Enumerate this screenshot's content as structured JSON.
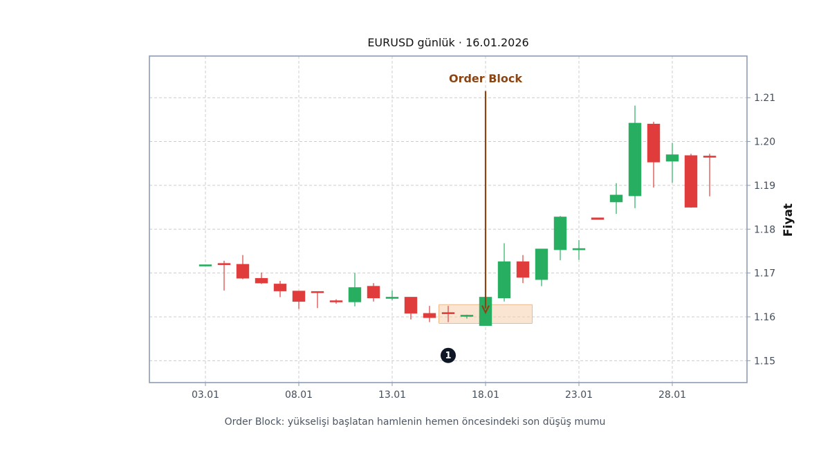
{
  "chart_data": {
    "type": "candlestick",
    "title": "EURUSD günlük · 16.01.2026",
    "ylabel": "Fiyat",
    "xlabel": "",
    "x_ticks": [
      "03.01",
      "08.01",
      "13.01",
      "18.01",
      "23.01",
      "28.01"
    ],
    "y_ticks": [
      "1.15",
      "1.16",
      "1.17",
      "1.18",
      "1.19",
      "1.20",
      "1.21"
    ],
    "xlim": [
      "2025-12-31",
      "2026-02-01"
    ],
    "ylim": [
      1.145,
      1.2195
    ],
    "grid": true,
    "colors": {
      "up": "#27ae60",
      "down": "#e03c3c",
      "annotation": "#8b4513",
      "zone": "#f5cba7",
      "frame": "#8a9bb5"
    },
    "candles": [
      {
        "date": "2026-01-03",
        "open": 1.1719,
        "high": 1.1719,
        "low": 1.1719,
        "close": 1.1719
      },
      {
        "date": "2026-01-04",
        "open": 1.1722,
        "high": 1.1728,
        "low": 1.166,
        "close": 1.1719
      },
      {
        "date": "2026-01-05",
        "open": 1.172,
        "high": 1.1741,
        "low": 1.1686,
        "close": 1.1688
      },
      {
        "date": "2026-01-06",
        "open": 1.1688,
        "high": 1.1701,
        "low": 1.1675,
        "close": 1.1677
      },
      {
        "date": "2026-01-07",
        "open": 1.1675,
        "high": 1.1682,
        "low": 1.1645,
        "close": 1.1659
      },
      {
        "date": "2026-01-08",
        "open": 1.1659,
        "high": 1.1659,
        "low": 1.1618,
        "close": 1.1635
      },
      {
        "date": "2026-01-09",
        "open": 1.1658,
        "high": 1.1658,
        "low": 1.162,
        "close": 1.1656
      },
      {
        "date": "2026-01-10",
        "open": 1.1637,
        "high": 1.164,
        "low": 1.163,
        "close": 1.1634
      },
      {
        "date": "2026-01-11",
        "open": 1.1634,
        "high": 1.17,
        "low": 1.1624,
        "close": 1.1667
      },
      {
        "date": "2026-01-12",
        "open": 1.167,
        "high": 1.1677,
        "low": 1.1635,
        "close": 1.1643
      },
      {
        "date": "2026-01-13",
        "open": 1.1643,
        "high": 1.166,
        "low": 1.1638,
        "close": 1.1645
      },
      {
        "date": "2026-01-14",
        "open": 1.1645,
        "high": 1.1645,
        "low": 1.1594,
        "close": 1.1608
      },
      {
        "date": "2026-01-15",
        "open": 1.1608,
        "high": 1.1625,
        "low": 1.1588,
        "close": 1.1598
      },
      {
        "date": "2026-01-16",
        "open": 1.161,
        "high": 1.1625,
        "low": 1.1588,
        "close": 1.1608
      },
      {
        "date": "2026-01-17",
        "open": 1.1602,
        "high": 1.1605,
        "low": 1.1596,
        "close": 1.1604
      },
      {
        "date": "2026-01-18",
        "open": 1.158,
        "high": 1.1645,
        "low": 1.158,
        "close": 1.1645
      },
      {
        "date": "2026-01-19",
        "open": 1.1643,
        "high": 1.1768,
        "low": 1.1635,
        "close": 1.1726
      },
      {
        "date": "2026-01-20",
        "open": 1.1726,
        "high": 1.1741,
        "low": 1.1677,
        "close": 1.169
      },
      {
        "date": "2026-01-21",
        "open": 1.1685,
        "high": 1.1755,
        "low": 1.167,
        "close": 1.1755
      },
      {
        "date": "2026-01-22",
        "open": 1.1753,
        "high": 1.183,
        "low": 1.1729,
        "close": 1.1828
      },
      {
        "date": "2026-01-23",
        "open": 1.1753,
        "high": 1.1775,
        "low": 1.173,
        "close": 1.1756
      },
      {
        "date": "2026-01-24",
        "open": 1.1826,
        "high": 1.1826,
        "low": 1.1822,
        "close": 1.1822
      },
      {
        "date": "2026-01-25",
        "open": 1.1862,
        "high": 1.1905,
        "low": 1.1835,
        "close": 1.1878
      },
      {
        "date": "2026-01-26",
        "open": 1.1876,
        "high": 1.2082,
        "low": 1.1848,
        "close": 1.2042
      },
      {
        "date": "2026-01-27",
        "open": 1.204,
        "high": 1.2045,
        "low": 1.1895,
        "close": 1.1953
      },
      {
        "date": "2026-01-28",
        "open": 1.1955,
        "high": 1.1997,
        "low": 1.1906,
        "close": 1.197
      },
      {
        "date": "2026-01-29",
        "open": 1.1968,
        "high": 1.1972,
        "low": 1.1849,
        "close": 1.185
      },
      {
        "date": "2026-01-30",
        "open": 1.1967,
        "high": 1.1972,
        "low": 1.1875,
        "close": 1.1964
      }
    ],
    "annotation": {
      "text": "Order Block",
      "date": "2026-01-18",
      "text_y": 1.2135,
      "arrow_start_y": 1.2115,
      "arrow_end_y": 1.161
    },
    "zone": {
      "x_start": "2026-01-15",
      "x_end": "2026-01-21",
      "y_low": 1.1585,
      "y_high": 1.1628
    },
    "marker": {
      "label": "1",
      "date": "2026-01-16",
      "y": 1.1512
    }
  },
  "caption": "Order Block: yükselişi başlatan hamlenin hemen öncesindeki son düşüş mumu"
}
